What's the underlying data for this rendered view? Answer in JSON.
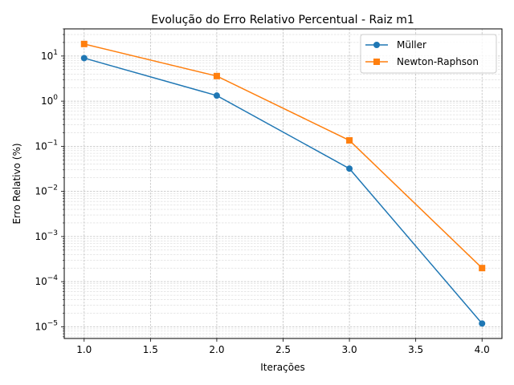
{
  "chart_data": {
    "type": "line",
    "title": "Evolução do Erro Relativo Percentual - Raiz m1",
    "xlabel": "Iterações",
    "ylabel": "Erro Relativo (%)",
    "x": [
      1.0,
      2.0,
      3.0,
      4.0
    ],
    "xlim": [
      0.85,
      4.15
    ],
    "xticks": [
      "1.0",
      "1.5",
      "2.0",
      "2.5",
      "3.0",
      "3.5",
      "4.0"
    ],
    "xtick_values": [
      1.0,
      1.5,
      2.0,
      2.5,
      3.0,
      3.5,
      4.0
    ],
    "yscale": "log",
    "ylim": [
      5.5e-06,
      40
    ],
    "yticks": [
      {
        "base": "10",
        "exp": "1"
      },
      {
        "base": "10",
        "exp": "0"
      },
      {
        "base": "10",
        "exp": "−1"
      },
      {
        "base": "10",
        "exp": "−2"
      },
      {
        "base": "10",
        "exp": "−3"
      },
      {
        "base": "10",
        "exp": "−4"
      },
      {
        "base": "10",
        "exp": "−5"
      }
    ],
    "ytick_values": [
      1,
      0,
      -1,
      -2,
      -3,
      -4,
      -5
    ],
    "grid": true,
    "legend_position": "top-right",
    "series": [
      {
        "name": "Müller",
        "values": [
          9.0,
          1.33,
          0.032,
          1.18e-05
        ],
        "color": "#1f77b4",
        "marker": "circle"
      },
      {
        "name": "Newton-Raphson",
        "values": [
          18.5,
          3.6,
          0.135,
          0.0002
        ],
        "color": "#ff7f0e",
        "marker": "square"
      }
    ]
  }
}
